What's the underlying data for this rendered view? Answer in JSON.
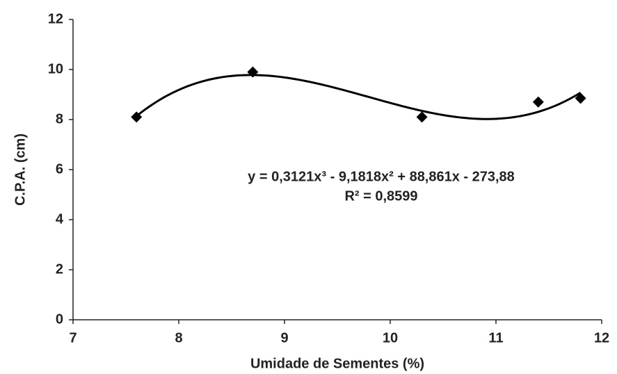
{
  "chart_data": {
    "type": "scatter",
    "x_label": "Umidade de Sementes (%)",
    "y_label": "C.P.A. (cm)",
    "x": [
      7.6,
      8.7,
      10.3,
      11.4,
      11.8
    ],
    "values": [
      8.1,
      9.9,
      8.1,
      8.7,
      8.85
    ],
    "color": "#000000",
    "trendline_order": 3,
    "equation": "y = 0,3121x³ - 9,1818x² + 88,861x - 273,88",
    "r_squared": "R² = 0,8599",
    "xlim": [
      7,
      12
    ],
    "xticks": [
      7,
      8,
      9,
      10,
      11,
      12
    ],
    "ylim": [
      0,
      12
    ],
    "yticks": [
      0,
      2,
      4,
      6,
      8,
      10,
      12
    ],
    "grid": false
  }
}
